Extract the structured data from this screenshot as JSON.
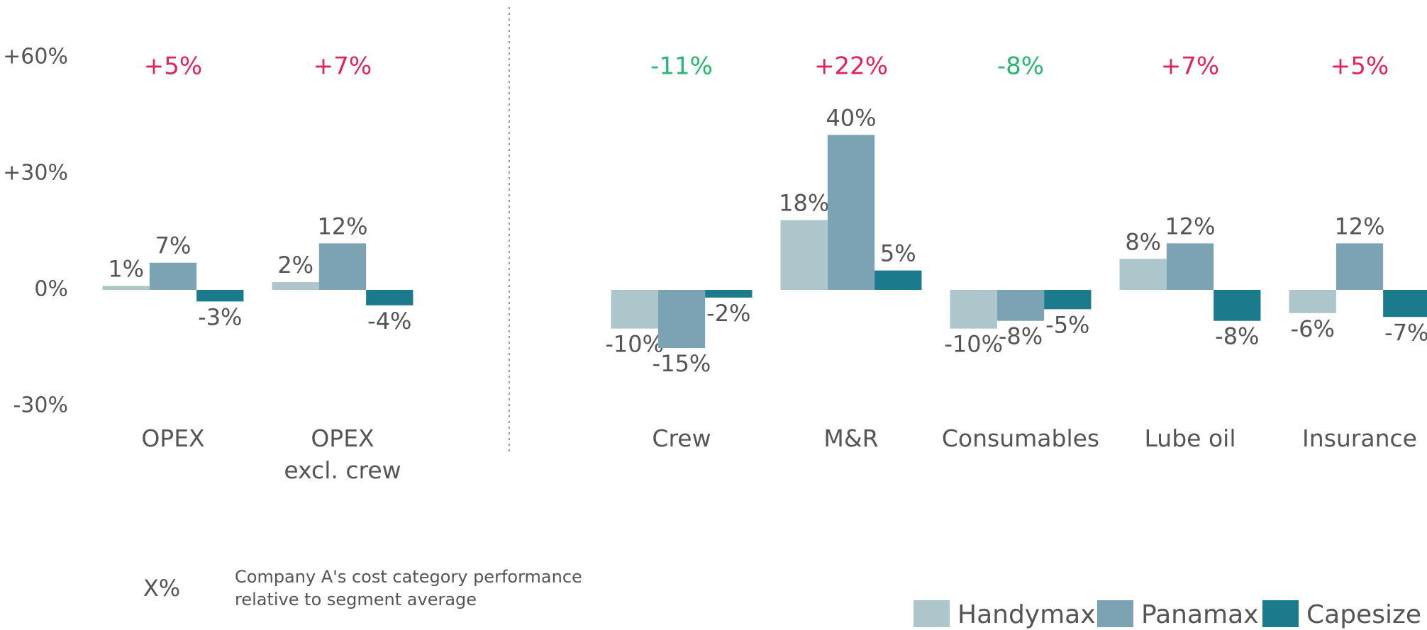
{
  "chart_data": {
    "type": "bar",
    "categories": [
      "OPEX",
      "OPEX\nexcl. crew",
      "Crew",
      "M&R",
      "Consumables",
      "Lube oil",
      "Insurance"
    ],
    "series": [
      {
        "name": "Handymax",
        "color": "#adc6cb",
        "values": [
          1,
          2,
          -10,
          18,
          -10,
          8,
          -6
        ],
        "value_labels": [
          "1%",
          "2%",
          "-10%",
          "18%",
          "-10%",
          "8%",
          "-6%"
        ]
      },
      {
        "name": "Panamax",
        "color": "#7ba3b4",
        "values": [
          7,
          12,
          -15,
          40,
          -8,
          12,
          12
        ],
        "value_labels": [
          "7%",
          "12%",
          "-15%",
          "40%",
          "-8%",
          "12%",
          "12%"
        ]
      },
      {
        "name": "Capesize",
        "color": "#1b7a8c",
        "values": [
          -3,
          -4,
          -2,
          5,
          -5,
          -8,
          -7
        ],
        "value_labels": [
          "-3%",
          "-4%",
          "-2%",
          "5%",
          "-5%",
          "-8%",
          "-7%"
        ]
      }
    ],
    "annotations": [
      {
        "text": "+5%",
        "color": "#e0245e"
      },
      {
        "text": "+7%",
        "color": "#e0245e"
      },
      {
        "text": "-11%",
        "color": "#2bb673"
      },
      {
        "text": "+22%",
        "color": "#e0245e"
      },
      {
        "text": "-8%",
        "color": "#2bb673"
      },
      {
        "text": "+7%",
        "color": "#e0245e"
      },
      {
        "text": "+5%",
        "color": "#e0245e"
      }
    ],
    "ylim": [
      -30,
      60
    ],
    "yticks": [
      {
        "value": -30,
        "label": "-30%"
      },
      {
        "value": 0,
        "label": "0%"
      },
      {
        "value": 30,
        "label": "+30%"
      },
      {
        "value": 60,
        "label": "+60%"
      }
    ],
    "grid": false,
    "legend": "bottom-right",
    "key_symbol": "X%",
    "key_text": "Company A's cost category performance\nrelative to segment average"
  }
}
